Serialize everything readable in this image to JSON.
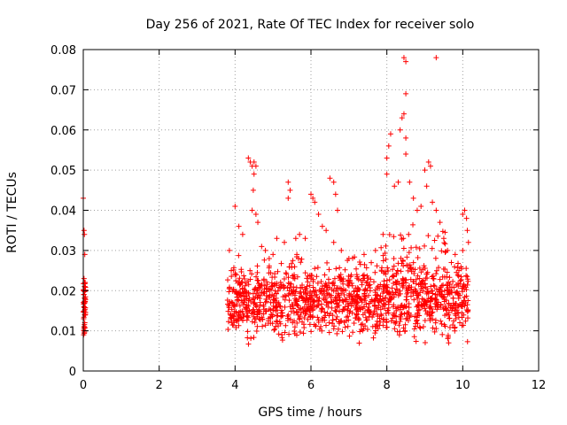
{
  "chart_data": {
    "type": "scatter",
    "title": "Day 256 of 2021, Rate Of TEC Index for receiver solo",
    "xlabel": "GPS time / hours",
    "ylabel": "ROTI / TECUs",
    "xlim": [
      0,
      12
    ],
    "ylim": [
      0,
      0.08
    ],
    "x_ticks": [
      "0",
      "2",
      "4",
      "6",
      "8",
      "10",
      "12"
    ],
    "y_ticks": [
      "0",
      "0.01",
      "0.02",
      "0.03",
      "0.04",
      "0.05",
      "0.06",
      "0.07",
      "0.08"
    ],
    "grid": true,
    "marker": "+",
    "color": "#ff0000",
    "series": [
      {
        "name": "ROTI",
        "points": [
          [
            0.0,
            0.043
          ],
          [
            0.02,
            0.035
          ],
          [
            0.03,
            0.034
          ],
          [
            0.04,
            0.029
          ],
          [
            0.02,
            0.023
          ],
          [
            0.05,
            0.022
          ],
          [
            0.03,
            0.021
          ],
          [
            0.01,
            0.019
          ],
          [
            0.04,
            0.017
          ],
          [
            0.02,
            0.016
          ],
          [
            0.03,
            0.015
          ],
          [
            0.05,
            0.014
          ],
          [
            0.01,
            0.013
          ],
          [
            0.04,
            0.012
          ],
          [
            0.02,
            0.011
          ],
          [
            0.03,
            0.01
          ],
          [
            0.01,
            0.009
          ],
          [
            0.05,
            0.018
          ],
          [
            0.02,
            0.02
          ],
          [
            0.04,
            0.014
          ],
          [
            3.85,
            0.03
          ],
          [
            3.9,
            0.025
          ],
          [
            4.0,
            0.041
          ],
          [
            4.1,
            0.036
          ],
          [
            4.2,
            0.034
          ],
          [
            4.35,
            0.053
          ],
          [
            4.4,
            0.052
          ],
          [
            4.45,
            0.051
          ],
          [
            4.5,
            0.052
          ],
          [
            4.55,
            0.051
          ],
          [
            4.5,
            0.049
          ],
          [
            4.48,
            0.045
          ],
          [
            4.45,
            0.04
          ],
          [
            4.55,
            0.039
          ],
          [
            4.6,
            0.037
          ],
          [
            4.7,
            0.031
          ],
          [
            4.8,
            0.03
          ],
          [
            4.9,
            0.028
          ],
          [
            5.0,
            0.029
          ],
          [
            5.1,
            0.033
          ],
          [
            5.3,
            0.032
          ],
          [
            5.4,
            0.047
          ],
          [
            5.45,
            0.045
          ],
          [
            5.4,
            0.043
          ],
          [
            5.6,
            0.033
          ],
          [
            5.7,
            0.034
          ],
          [
            5.85,
            0.033
          ],
          [
            6.0,
            0.044
          ],
          [
            6.05,
            0.043
          ],
          [
            6.1,
            0.042
          ],
          [
            6.2,
            0.039
          ],
          [
            6.3,
            0.036
          ],
          [
            6.4,
            0.035
          ],
          [
            6.5,
            0.048
          ],
          [
            6.6,
            0.047
          ],
          [
            6.65,
            0.044
          ],
          [
            6.7,
            0.04
          ],
          [
            6.6,
            0.032
          ],
          [
            6.8,
            0.03
          ],
          [
            7.0,
            0.028
          ],
          [
            7.4,
            0.029
          ],
          [
            7.7,
            0.03
          ],
          [
            7.9,
            0.034
          ],
          [
            8.0,
            0.053
          ],
          [
            8.05,
            0.056
          ],
          [
            8.1,
            0.059
          ],
          [
            8.0,
            0.049
          ],
          [
            8.2,
            0.046
          ],
          [
            8.3,
            0.047
          ],
          [
            8.35,
            0.06
          ],
          [
            8.4,
            0.063
          ],
          [
            8.45,
            0.064
          ],
          [
            8.45,
            0.078
          ],
          [
            8.5,
            0.077
          ],
          [
            8.5,
            0.069
          ],
          [
            8.5,
            0.058
          ],
          [
            8.5,
            0.054
          ],
          [
            8.6,
            0.047
          ],
          [
            8.7,
            0.043
          ],
          [
            8.8,
            0.04
          ],
          [
            8.9,
            0.041
          ],
          [
            9.0,
            0.05
          ],
          [
            9.05,
            0.046
          ],
          [
            9.1,
            0.052
          ],
          [
            9.15,
            0.051
          ],
          [
            9.2,
            0.042
          ],
          [
            9.3,
            0.04
          ],
          [
            9.3,
            0.078
          ],
          [
            9.4,
            0.037
          ],
          [
            9.5,
            0.033
          ],
          [
            9.6,
            0.03
          ],
          [
            9.7,
            0.027
          ],
          [
            9.8,
            0.029
          ],
          [
            9.9,
            0.025
          ],
          [
            10.0,
            0.039
          ],
          [
            10.05,
            0.04
          ],
          [
            10.1,
            0.038
          ],
          [
            10.12,
            0.035
          ],
          [
            10.15,
            0.032
          ],
          [
            10.0,
            0.03
          ]
        ]
      }
    ],
    "dense_band": {
      "x_start": 3.8,
      "x_end": 10.15,
      "y_min": 0.005,
      "y_mid": 0.014,
      "y_max": 0.025
    }
  }
}
